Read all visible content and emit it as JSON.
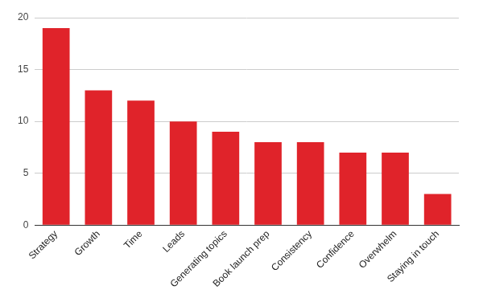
{
  "chart_data": {
    "type": "bar",
    "categories": [
      "Strategy",
      "Growth",
      "Time",
      "Leads",
      "Generating topics",
      "Book launch prep",
      "Consistency",
      "Confidence",
      "Overwhelm",
      "Staying in touch"
    ],
    "values": [
      19,
      13,
      12,
      10,
      9,
      8,
      8,
      7,
      7,
      3
    ],
    "color": "#e0232a",
    "ylim": [
      0,
      20
    ],
    "yticks": [
      0,
      5,
      10,
      15,
      20
    ],
    "grid": true
  }
}
